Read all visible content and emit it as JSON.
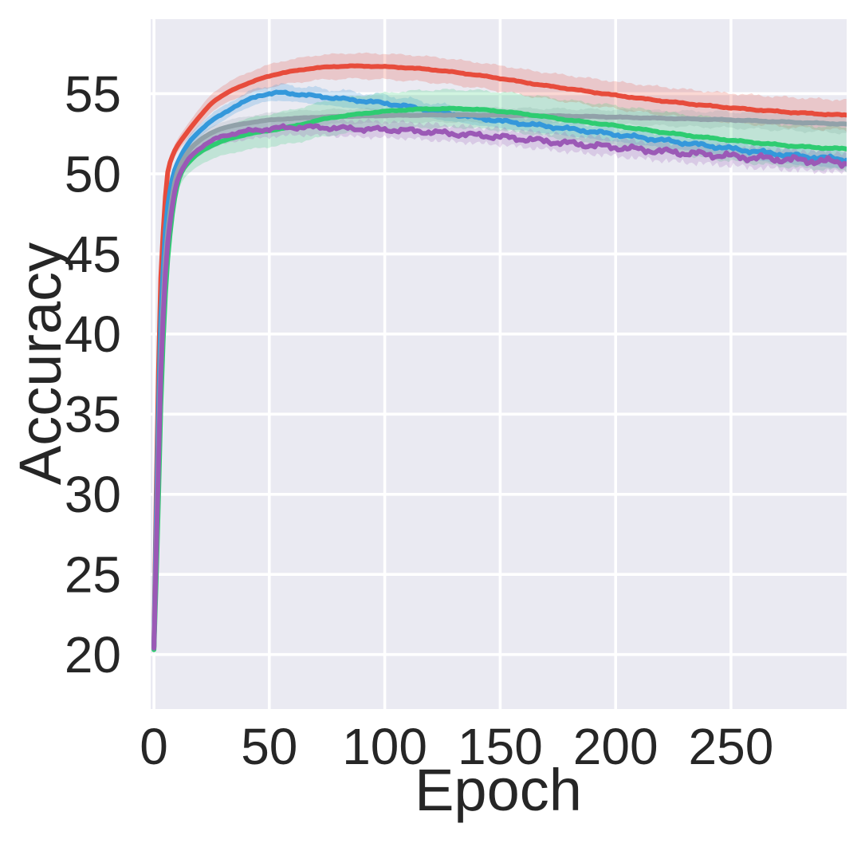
{
  "chart_data": {
    "type": "line",
    "title": "",
    "xlabel": "Epoch",
    "ylabel": "Accuracy",
    "xlim": [
      -1.4,
      300.1
    ],
    "ylim": [
      16.6,
      59.65
    ],
    "xticks": [
      0,
      50,
      100,
      150,
      200,
      250
    ],
    "yticks": [
      20,
      25,
      30,
      35,
      40,
      45,
      50,
      55
    ],
    "grid": true,
    "legend": "none",
    "style": {
      "background": "#eaeaf2",
      "grid_color": "#ffffff",
      "text_color": "#262626",
      "band_opacity": 0.22,
      "line_width": 6
    },
    "series": [
      {
        "name": "red",
        "color": "#e74c3c",
        "noise": 0.05,
        "points": [
          [
            0,
            20.5
          ],
          [
            1.5,
            34
          ],
          [
            3,
            43.5
          ],
          [
            4,
            46.3
          ],
          [
            5,
            48.6
          ],
          [
            6,
            50.1
          ],
          [
            8,
            51.1
          ],
          [
            10,
            51.7
          ],
          [
            15,
            52.7
          ],
          [
            20,
            53.6
          ],
          [
            25,
            54.4
          ],
          [
            30,
            54.9
          ],
          [
            35,
            55.3
          ],
          [
            40,
            55.6
          ],
          [
            50,
            56.1
          ],
          [
            60,
            56.4
          ],
          [
            70,
            56.6
          ],
          [
            80,
            56.7
          ],
          [
            90,
            56.72
          ],
          [
            105,
            56.65
          ],
          [
            120,
            56.5
          ],
          [
            135,
            56.25
          ],
          [
            150,
            55.95
          ],
          [
            165,
            55.6
          ],
          [
            180,
            55.3
          ],
          [
            200,
            54.9
          ],
          [
            220,
            54.55
          ],
          [
            240,
            54.25
          ],
          [
            260,
            54.0
          ],
          [
            280,
            53.8
          ],
          [
            300,
            53.65
          ]
        ],
        "band": [
          [
            0,
            0.15
          ],
          [
            10,
            0.4
          ],
          [
            30,
            0.6
          ],
          [
            60,
            0.75
          ],
          [
            100,
            0.8
          ],
          [
            150,
            0.8
          ],
          [
            200,
            0.85
          ],
          [
            250,
            0.9
          ],
          [
            300,
            0.95
          ]
        ]
      },
      {
        "name": "blue",
        "color": "#3498db",
        "noise": 0.16,
        "points": [
          [
            0,
            20.5
          ],
          [
            1.5,
            32
          ],
          [
            3,
            41
          ],
          [
            4,
            44
          ],
          [
            5,
            46.5
          ],
          [
            6,
            48
          ],
          [
            8,
            49.7
          ],
          [
            10,
            50.6
          ],
          [
            15,
            51.9
          ],
          [
            20,
            52.7
          ],
          [
            25,
            53.3
          ],
          [
            30,
            53.75
          ],
          [
            35,
            54.2
          ],
          [
            40,
            54.55
          ],
          [
            45,
            54.85
          ],
          [
            50,
            55.0
          ],
          [
            55,
            55.05
          ],
          [
            60,
            55.0
          ],
          [
            70,
            54.85
          ],
          [
            80,
            54.7
          ],
          [
            90,
            54.55
          ],
          [
            100,
            54.4
          ],
          [
            110,
            54.2
          ],
          [
            120,
            53.95
          ],
          [
            135,
            53.6
          ],
          [
            150,
            53.3
          ],
          [
            165,
            53.05
          ],
          [
            180,
            52.8
          ],
          [
            200,
            52.45
          ],
          [
            220,
            52.1
          ],
          [
            240,
            51.75
          ],
          [
            260,
            51.4
          ],
          [
            280,
            51.1
          ],
          [
            300,
            50.9
          ]
        ],
        "band": [
          [
            0,
            0.15
          ],
          [
            10,
            0.35
          ],
          [
            30,
            0.45
          ],
          [
            60,
            0.5
          ],
          [
            100,
            0.5
          ],
          [
            150,
            0.45
          ],
          [
            200,
            0.45
          ],
          [
            250,
            0.5
          ],
          [
            300,
            0.55
          ]
        ]
      },
      {
        "name": "gray",
        "color": "#91a1a9",
        "noise": 0.04,
        "points": [
          [
            0,
            20.4
          ],
          [
            1.5,
            30
          ],
          [
            3,
            38.5
          ],
          [
            4,
            42
          ],
          [
            5,
            44.8
          ],
          [
            6,
            46.4
          ],
          [
            8,
            48.6
          ],
          [
            10,
            50.0
          ],
          [
            15,
            51.4
          ],
          [
            20,
            52.1
          ],
          [
            25,
            52.55
          ],
          [
            30,
            52.85
          ],
          [
            40,
            53.15
          ],
          [
            50,
            53.35
          ],
          [
            60,
            53.45
          ],
          [
            75,
            53.55
          ],
          [
            90,
            53.6
          ],
          [
            110,
            53.65
          ],
          [
            130,
            53.67
          ],
          [
            150,
            53.65
          ],
          [
            170,
            53.62
          ],
          [
            190,
            53.57
          ],
          [
            210,
            53.5
          ],
          [
            230,
            53.43
          ],
          [
            250,
            53.36
          ],
          [
            270,
            53.25
          ],
          [
            300,
            53.1
          ]
        ],
        "band": [
          [
            0,
            0.15
          ],
          [
            10,
            0.3
          ],
          [
            30,
            0.4
          ],
          [
            60,
            0.45
          ],
          [
            100,
            0.45
          ],
          [
            150,
            0.45
          ],
          [
            200,
            0.45
          ],
          [
            250,
            0.5
          ],
          [
            300,
            0.55
          ]
        ]
      },
      {
        "name": "green",
        "color": "#2ecc71",
        "noise": 0.06,
        "points": [
          [
            0,
            20.3
          ],
          [
            1.5,
            27
          ],
          [
            3,
            35.5
          ],
          [
            4,
            39.5
          ],
          [
            5,
            42.5
          ],
          [
            6,
            44.7
          ],
          [
            8,
            47.5
          ],
          [
            10,
            49.2
          ],
          [
            12,
            50.1
          ],
          [
            15,
            50.7
          ],
          [
            20,
            51.35
          ],
          [
            25,
            51.75
          ],
          [
            30,
            52.05
          ],
          [
            40,
            52.45
          ],
          [
            50,
            52.7
          ],
          [
            60,
            52.95
          ],
          [
            75,
            53.45
          ],
          [
            90,
            53.75
          ],
          [
            105,
            53.95
          ],
          [
            120,
            54.05
          ],
          [
            135,
            54.05
          ],
          [
            150,
            53.9
          ],
          [
            165,
            53.65
          ],
          [
            180,
            53.35
          ],
          [
            200,
            53.0
          ],
          [
            220,
            52.6
          ],
          [
            240,
            52.25
          ],
          [
            260,
            51.95
          ],
          [
            280,
            51.7
          ],
          [
            300,
            51.55
          ]
        ],
        "band": [
          [
            0,
            0.15
          ],
          [
            10,
            0.6
          ],
          [
            30,
            0.9
          ],
          [
            60,
            1.05
          ],
          [
            100,
            1.15
          ],
          [
            150,
            1.2
          ],
          [
            200,
            1.25
          ],
          [
            250,
            1.3
          ],
          [
            300,
            1.35
          ]
        ]
      },
      {
        "name": "purple",
        "color": "#9b59b6",
        "noise": 0.28,
        "points": [
          [
            0,
            20.4
          ],
          [
            1.5,
            29
          ],
          [
            3,
            37.5
          ],
          [
            4,
            41
          ],
          [
            5,
            43.8
          ],
          [
            6,
            45.7
          ],
          [
            8,
            48.0
          ],
          [
            10,
            49.5
          ],
          [
            15,
            50.9
          ],
          [
            20,
            51.6
          ],
          [
            25,
            52.05
          ],
          [
            30,
            52.35
          ],
          [
            40,
            52.65
          ],
          [
            50,
            52.8
          ],
          [
            60,
            52.9
          ],
          [
            70,
            52.9
          ],
          [
            80,
            52.85
          ],
          [
            90,
            52.8
          ],
          [
            100,
            52.75
          ],
          [
            110,
            52.7
          ],
          [
            120,
            52.6
          ],
          [
            135,
            52.45
          ],
          [
            150,
            52.3
          ],
          [
            165,
            52.1
          ],
          [
            180,
            51.9
          ],
          [
            200,
            51.65
          ],
          [
            220,
            51.4
          ],
          [
            240,
            51.2
          ],
          [
            260,
            51.0
          ],
          [
            280,
            50.85
          ],
          [
            300,
            50.7
          ]
        ],
        "band": [
          [
            0,
            0.15
          ],
          [
            10,
            0.35
          ],
          [
            30,
            0.5
          ],
          [
            60,
            0.5
          ],
          [
            100,
            0.5
          ],
          [
            150,
            0.5
          ],
          [
            200,
            0.55
          ],
          [
            250,
            0.6
          ],
          [
            300,
            0.65
          ]
        ]
      }
    ]
  }
}
